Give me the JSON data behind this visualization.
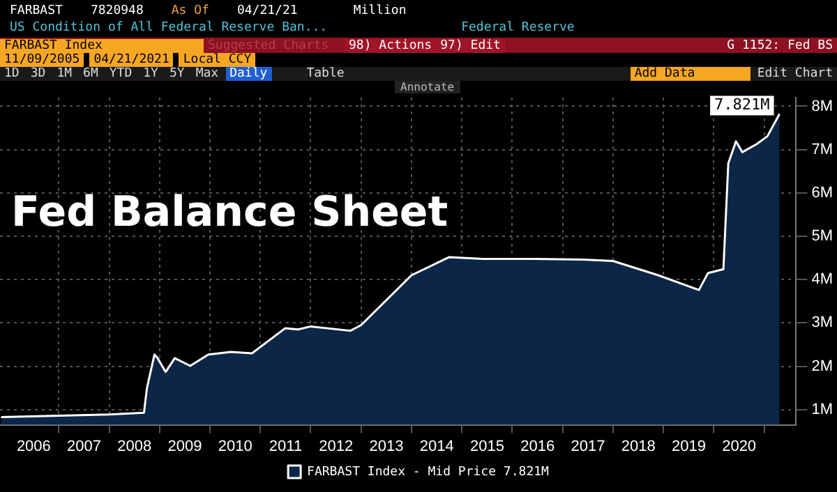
{
  "chart_data": {
    "type": "area",
    "title": "Fed Balance Sheet",
    "annotations": [
      "FARBAST",
      "7820948",
      "As Of",
      "04/21/21",
      "Million",
      "US Condition of All Federal Reserve Ban...",
      "Federal Reserve",
      "FARBAST Index",
      "Suggested Charts",
      "98) Actions",
      "97) Edit",
      "G 1152: Fed BS",
      "11/09/2005",
      "04/21/2021",
      "Local CCY",
      "1D",
      "3D",
      "1M",
      "6M",
      "YTD",
      "1Y",
      "5Y",
      "Max",
      "Daily",
      "Table",
      "Add Data",
      "Edit Chart",
      "Annotate"
    ],
    "x": [
      "2005-11-09",
      "2007-01-01",
      "2008-01-01",
      "2008-09-10",
      "2008-10-01",
      "2008-11-25",
      "2008-12-15",
      "2009-02-15",
      "2009-04-20",
      "2009-08-10",
      "2009-12-20",
      "2010-06-01",
      "2010-11-01",
      "2011-06-30",
      "2011-10-01",
      "2012-01-01",
      "2012-10-15",
      "2013-01-01",
      "2014-01-01",
      "2014-10-01",
      "2015-06-01",
      "2016-06-01",
      "2017-06-01",
      "2018-01-01",
      "2018-11-25",
      "2019-09-15",
      "2019-11-20",
      "2020-03-10",
      "2020-04-15",
      "2020-06-10",
      "2020-07-25",
      "2020-11-10",
      "2021-01-25",
      "2021-04-21"
    ],
    "series": [
      {
        "name": "FARBAST Index - Mid Price 7.821M",
        "color": "#ffffff",
        "values": [
          0.83,
          0.86,
          0.89,
          0.93,
          1.5,
          2.27,
          2.2,
          1.87,
          2.19,
          2.01,
          2.27,
          2.33,
          2.3,
          2.88,
          2.85,
          2.92,
          2.82,
          2.95,
          4.1,
          4.52,
          4.48,
          4.48,
          4.46,
          4.43,
          4.1,
          3.76,
          4.15,
          4.24,
          6.68,
          7.19,
          6.94,
          7.13,
          7.31,
          7.821
        ],
        "value_labels": [
          null,
          null,
          null,
          null,
          null,
          null,
          null,
          null,
          null,
          null,
          null,
          null,
          null,
          null,
          null,
          null,
          null,
          null,
          null,
          null,
          null,
          null,
          null,
          null,
          null,
          null,
          null,
          null,
          null,
          null,
          null,
          null,
          null,
          "7.821M"
        ]
      }
    ],
    "xlim": [
      "2005-11-01",
      "2021-08-20"
    ],
    "xticks": [
      {
        "value": "2006-07-02",
        "label": "2006"
      },
      {
        "value": "2007-01-01",
        "label": null
      },
      {
        "value": "2007-07-02",
        "label": "2007"
      },
      {
        "value": "2008-01-01",
        "label": null
      },
      {
        "value": "2008-07-02",
        "label": "2008"
      },
      {
        "value": "2009-01-01",
        "label": null
      },
      {
        "value": "2009-07-02",
        "label": "2009"
      },
      {
        "value": "2010-01-01",
        "label": null
      },
      {
        "value": "2010-07-02",
        "label": "2010"
      },
      {
        "value": "2011-01-01",
        "label": null
      },
      {
        "value": "2011-07-02",
        "label": "2011"
      },
      {
        "value": "2012-01-01",
        "label": null
      },
      {
        "value": "2012-07-02",
        "label": "2012"
      },
      {
        "value": "2013-01-01",
        "label": null
      },
      {
        "value": "2013-07-02",
        "label": "2013"
      },
      {
        "value": "2014-01-01",
        "label": null
      },
      {
        "value": "2014-07-02",
        "label": "2014"
      },
      {
        "value": "2015-01-01",
        "label": null
      },
      {
        "value": "2015-07-02",
        "label": "2015"
      },
      {
        "value": "2016-01-01",
        "label": null
      },
      {
        "value": "2016-07-02",
        "label": "2016"
      },
      {
        "value": "2017-01-01",
        "label": null
      },
      {
        "value": "2017-07-02",
        "label": "2017"
      },
      {
        "value": "2018-01-01",
        "label": null
      },
      {
        "value": "2018-07-02",
        "label": "2018"
      },
      {
        "value": "2019-01-01",
        "label": null
      },
      {
        "value": "2019-07-02",
        "label": "2019"
      },
      {
        "value": "2020-01-01",
        "label": null
      },
      {
        "value": "2020-07-02",
        "label": "2020"
      },
      {
        "value": "2021-01-01",
        "label": null
      }
    ],
    "ylim": [
      0.65,
      8.2
    ],
    "yticks": [
      {
        "value": 1,
        "label": "1M"
      },
      {
        "value": 2,
        "label": "2M"
      },
      {
        "value": 3,
        "label": "3M"
      },
      {
        "value": 4,
        "label": "4M"
      },
      {
        "value": 5,
        "label": "5M"
      },
      {
        "value": 6,
        "label": "6M"
      },
      {
        "value": 7,
        "label": "7M"
      },
      {
        "value": 8,
        "label": "8M"
      }
    ],
    "grid": true,
    "legend": "bottom"
  }
}
